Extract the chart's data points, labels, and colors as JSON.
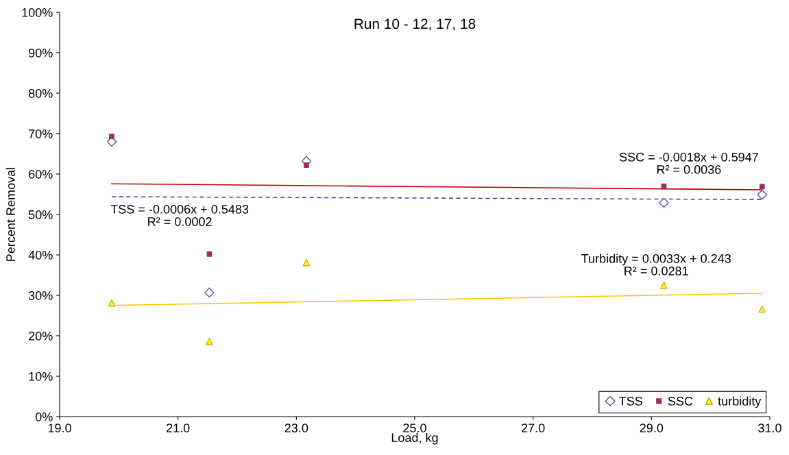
{
  "chart_data": {
    "type": "scatter",
    "title": "Run 10 - 12, 17, 18",
    "xlabel": "Load, kg",
    "ylabel": "Percent Removal",
    "xlim": [
      19.0,
      31.0
    ],
    "xticks": [
      {
        "value": 19,
        "label": "19.0"
      },
      {
        "value": 21,
        "label": "21.0"
      },
      {
        "value": 23,
        "label": "23.0"
      },
      {
        "value": 25,
        "label": "25.0"
      },
      {
        "value": 27,
        "label": "27.0"
      },
      {
        "value": 29,
        "label": "29.0"
      },
      {
        "value": 31,
        "label": "31.0"
      }
    ],
    "ylim": [
      0,
      100
    ],
    "yticks": [
      {
        "value": 0,
        "label": "0%"
      },
      {
        "value": 10,
        "label": "10%"
      },
      {
        "value": 20,
        "label": "20%"
      },
      {
        "value": 30,
        "label": "30%"
      },
      {
        "value": 40,
        "label": "40%"
      },
      {
        "value": 50,
        "label": "50%"
      },
      {
        "value": 60,
        "label": "60%"
      },
      {
        "value": 70,
        "label": "70%"
      },
      {
        "value": 80,
        "label": "80%"
      },
      {
        "value": 90,
        "label": "90%"
      },
      {
        "value": 100,
        "label": "100%"
      }
    ],
    "grid": false,
    "legend": "bottom right",
    "series": [
      {
        "name": "TSS",
        "marker": "diamond",
        "color": "#4f4f9f",
        "x": [
          19.88,
          21.53,
          23.17,
          29.21,
          30.87
        ],
        "values": [
          68.0,
          30.7,
          63.2,
          52.9,
          54.9
        ]
      },
      {
        "name": "SSC",
        "marker": "square",
        "color": "#993366",
        "x": [
          19.88,
          21.53,
          23.17,
          29.21,
          30.87
        ],
        "values": [
          69.3,
          40.2,
          62.2,
          57.0,
          56.9
        ]
      },
      {
        "name": "turbidity",
        "marker": "triangle",
        "color": "#ffff00",
        "x": [
          19.88,
          21.53,
          23.17,
          29.21,
          30.87
        ],
        "values": [
          28.1,
          18.6,
          38.1,
          32.5,
          26.6
        ]
      },
      {
        "type": "line",
        "line_style": "dashed",
        "color": "#4040a0",
        "x": [
          19.88,
          30.87
        ],
        "values": [
          54.4,
          53.7
        ]
      },
      {
        "type": "line",
        "line_style": "solid",
        "color": "#c00000",
        "x": [
          19.88,
          30.87
        ],
        "values": [
          57.6,
          56.1
        ]
      },
      {
        "type": "line",
        "line_style": "solid",
        "color": "#ffc000",
        "x": [
          19.88,
          30.87
        ],
        "values": [
          27.5,
          30.5
        ]
      }
    ],
    "annotations": [
      "SSC = -0.0018x + 0.5947\nR² = 0.0036",
      "TSS = -0.0006x + 0.5483\nR² = 0.0002",
      "Turbidity = 0.0033x + 0.243\nR² = 0.0281"
    ]
  }
}
